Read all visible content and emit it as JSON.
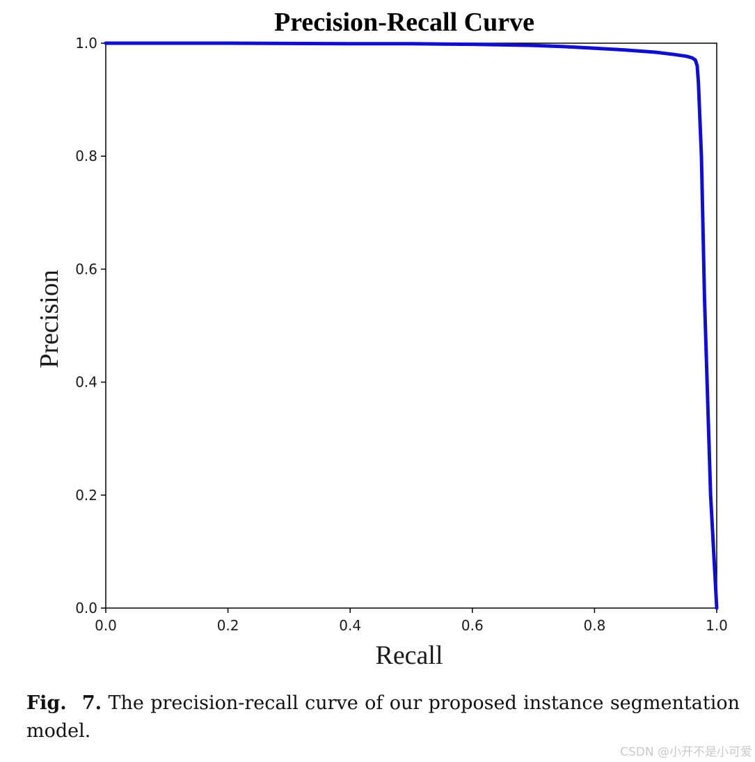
{
  "chart_data": {
    "type": "line",
    "title": "Precision-Recall Curve",
    "xlabel": "Recall",
    "ylabel": "Precision",
    "xlim": [
      0.0,
      1.0
    ],
    "ylim": [
      0.0,
      1.0
    ],
    "xticks": [
      "0.0",
      "0.2",
      "0.4",
      "0.6",
      "0.8",
      "1.0"
    ],
    "yticks": [
      "0.0",
      "0.2",
      "0.4",
      "0.6",
      "0.8",
      "1.0"
    ],
    "grid": false,
    "series": [
      {
        "color": "#1010cc",
        "x": [
          0.0,
          0.2,
          0.4,
          0.5,
          0.6,
          0.7,
          0.75,
          0.8,
          0.85,
          0.9,
          0.93,
          0.95,
          0.96,
          0.965,
          0.968,
          0.97,
          0.975,
          0.98,
          0.99,
          1.0
        ],
        "y": [
          1.0,
          1.0,
          0.999,
          0.999,
          0.998,
          0.996,
          0.994,
          0.991,
          0.988,
          0.984,
          0.98,
          0.977,
          0.974,
          0.97,
          0.96,
          0.93,
          0.8,
          0.55,
          0.2,
          0.0
        ]
      }
    ]
  },
  "caption": {
    "label": "Fig. 7.",
    "text": "The precision-recall curve of our proposed instance segmentation model."
  },
  "watermark": "CSDN @小开不是小可爱"
}
